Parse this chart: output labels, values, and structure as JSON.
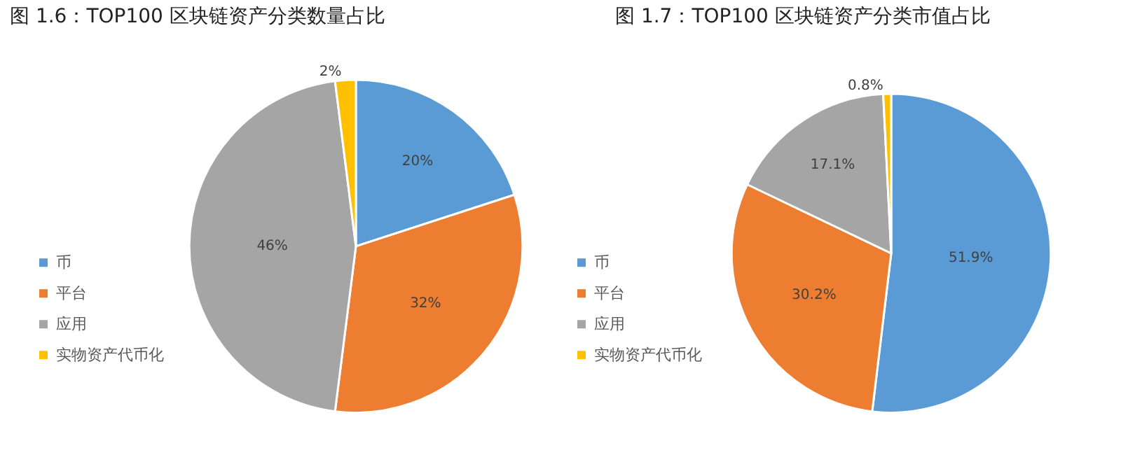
{
  "chart_data": [
    {
      "type": "pie",
      "title": "图 1.6：TOP100 区块链资产分类数量占比",
      "categories": [
        "币",
        "平台",
        "应用",
        "实物资产代币化"
      ],
      "values": [
        20,
        32,
        46,
        2
      ],
      "colors": [
        "#5b9bd5",
        "#ed7d31",
        "#a5a5a5",
        "#ffc000"
      ],
      "value_labels": [
        "20%",
        "32%",
        "46%",
        "2%"
      ],
      "legend": "left"
    },
    {
      "type": "pie",
      "title": "图 1.7：TOP100 区块链资产分类市值占比",
      "categories": [
        "币",
        "平台",
        "应用",
        "实物资产代币化"
      ],
      "values": [
        51.9,
        30.2,
        17.1,
        0.8
      ],
      "colors": [
        "#5b9bd5",
        "#ed7d31",
        "#a5a5a5",
        "#ffc000"
      ],
      "value_labels": [
        "51.9%",
        "30.2%",
        "17.1%",
        "0.8%"
      ],
      "legend": "left"
    }
  ]
}
